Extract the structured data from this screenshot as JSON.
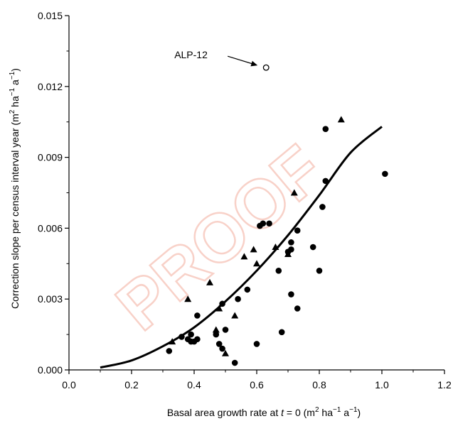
{
  "watermark": "PROOF",
  "chart_data": {
    "type": "scatter",
    "title": "",
    "xlabel": "Basal area growth rate at t = 0 (m2 ha−1 a−1)",
    "ylabel": "Correction slope per census interval year (m2 ha−1 a−1)",
    "xlim": [
      0.0,
      1.2
    ],
    "ylim": [
      0.0,
      0.015
    ],
    "x_ticks": [
      "0.0",
      "0.2",
      "0.4",
      "0.6",
      "0.8",
      "1.0",
      "1.2"
    ],
    "y_ticks": [
      "0.000",
      "0.003",
      "0.006",
      "0.009",
      "0.012",
      "0.015"
    ],
    "grid": false,
    "annotation": {
      "text": "ALP-12",
      "x": 0.63,
      "y": 0.0128
    },
    "fit_curve": {
      "x": [
        0.1,
        0.2,
        0.3,
        0.4,
        0.5,
        0.6,
        0.7,
        0.8,
        0.9,
        1.0
      ],
      "y": [
        0.0001,
        0.0004,
        0.001,
        0.0018,
        0.0029,
        0.0042,
        0.0057,
        0.0074,
        0.0092,
        0.0103
      ]
    },
    "series": [
      {
        "marker": "circle",
        "points": [
          [
            0.32,
            0.0008
          ],
          [
            0.36,
            0.0014
          ],
          [
            0.38,
            0.0013
          ],
          [
            0.39,
            0.0015
          ],
          [
            0.39,
            0.0012
          ],
          [
            0.4,
            0.0012
          ],
          [
            0.41,
            0.0023
          ],
          [
            0.41,
            0.0013
          ],
          [
            0.47,
            0.0015
          ],
          [
            0.48,
            0.0011
          ],
          [
            0.49,
            0.0028
          ],
          [
            0.49,
            0.0009
          ],
          [
            0.5,
            0.0017
          ],
          [
            0.53,
            0.0003
          ],
          [
            0.54,
            0.003
          ],
          [
            0.57,
            0.0034
          ],
          [
            0.6,
            0.0011
          ],
          [
            0.61,
            0.0061
          ],
          [
            0.62,
            0.0062
          ],
          [
            0.64,
            0.0062
          ],
          [
            0.67,
            0.0042
          ],
          [
            0.68,
            0.0016
          ],
          [
            0.7,
            0.005
          ],
          [
            0.71,
            0.0054
          ],
          [
            0.71,
            0.0051
          ],
          [
            0.71,
            0.0032
          ],
          [
            0.73,
            0.0059
          ],
          [
            0.73,
            0.0026
          ],
          [
            0.78,
            0.0052
          ],
          [
            0.8,
            0.0042
          ],
          [
            0.81,
            0.0069
          ],
          [
            0.82,
            0.008
          ],
          [
            0.82,
            0.0102
          ],
          [
            1.01,
            0.0083
          ]
        ]
      },
      {
        "marker": "triangle",
        "points": [
          [
            0.33,
            0.0012
          ],
          [
            0.38,
            0.003
          ],
          [
            0.45,
            0.0037
          ],
          [
            0.47,
            0.0017
          ],
          [
            0.48,
            0.0026
          ],
          [
            0.5,
            0.0007
          ],
          [
            0.53,
            0.0023
          ],
          [
            0.56,
            0.0048
          ],
          [
            0.59,
            0.0051
          ],
          [
            0.6,
            0.0045
          ],
          [
            0.66,
            0.0052
          ],
          [
            0.7,
            0.0049
          ],
          [
            0.72,
            0.0075
          ],
          [
            0.87,
            0.0106
          ]
        ]
      },
      {
        "marker": "open-circle",
        "points": [
          [
            0.63,
            0.0128
          ]
        ]
      }
    ]
  }
}
